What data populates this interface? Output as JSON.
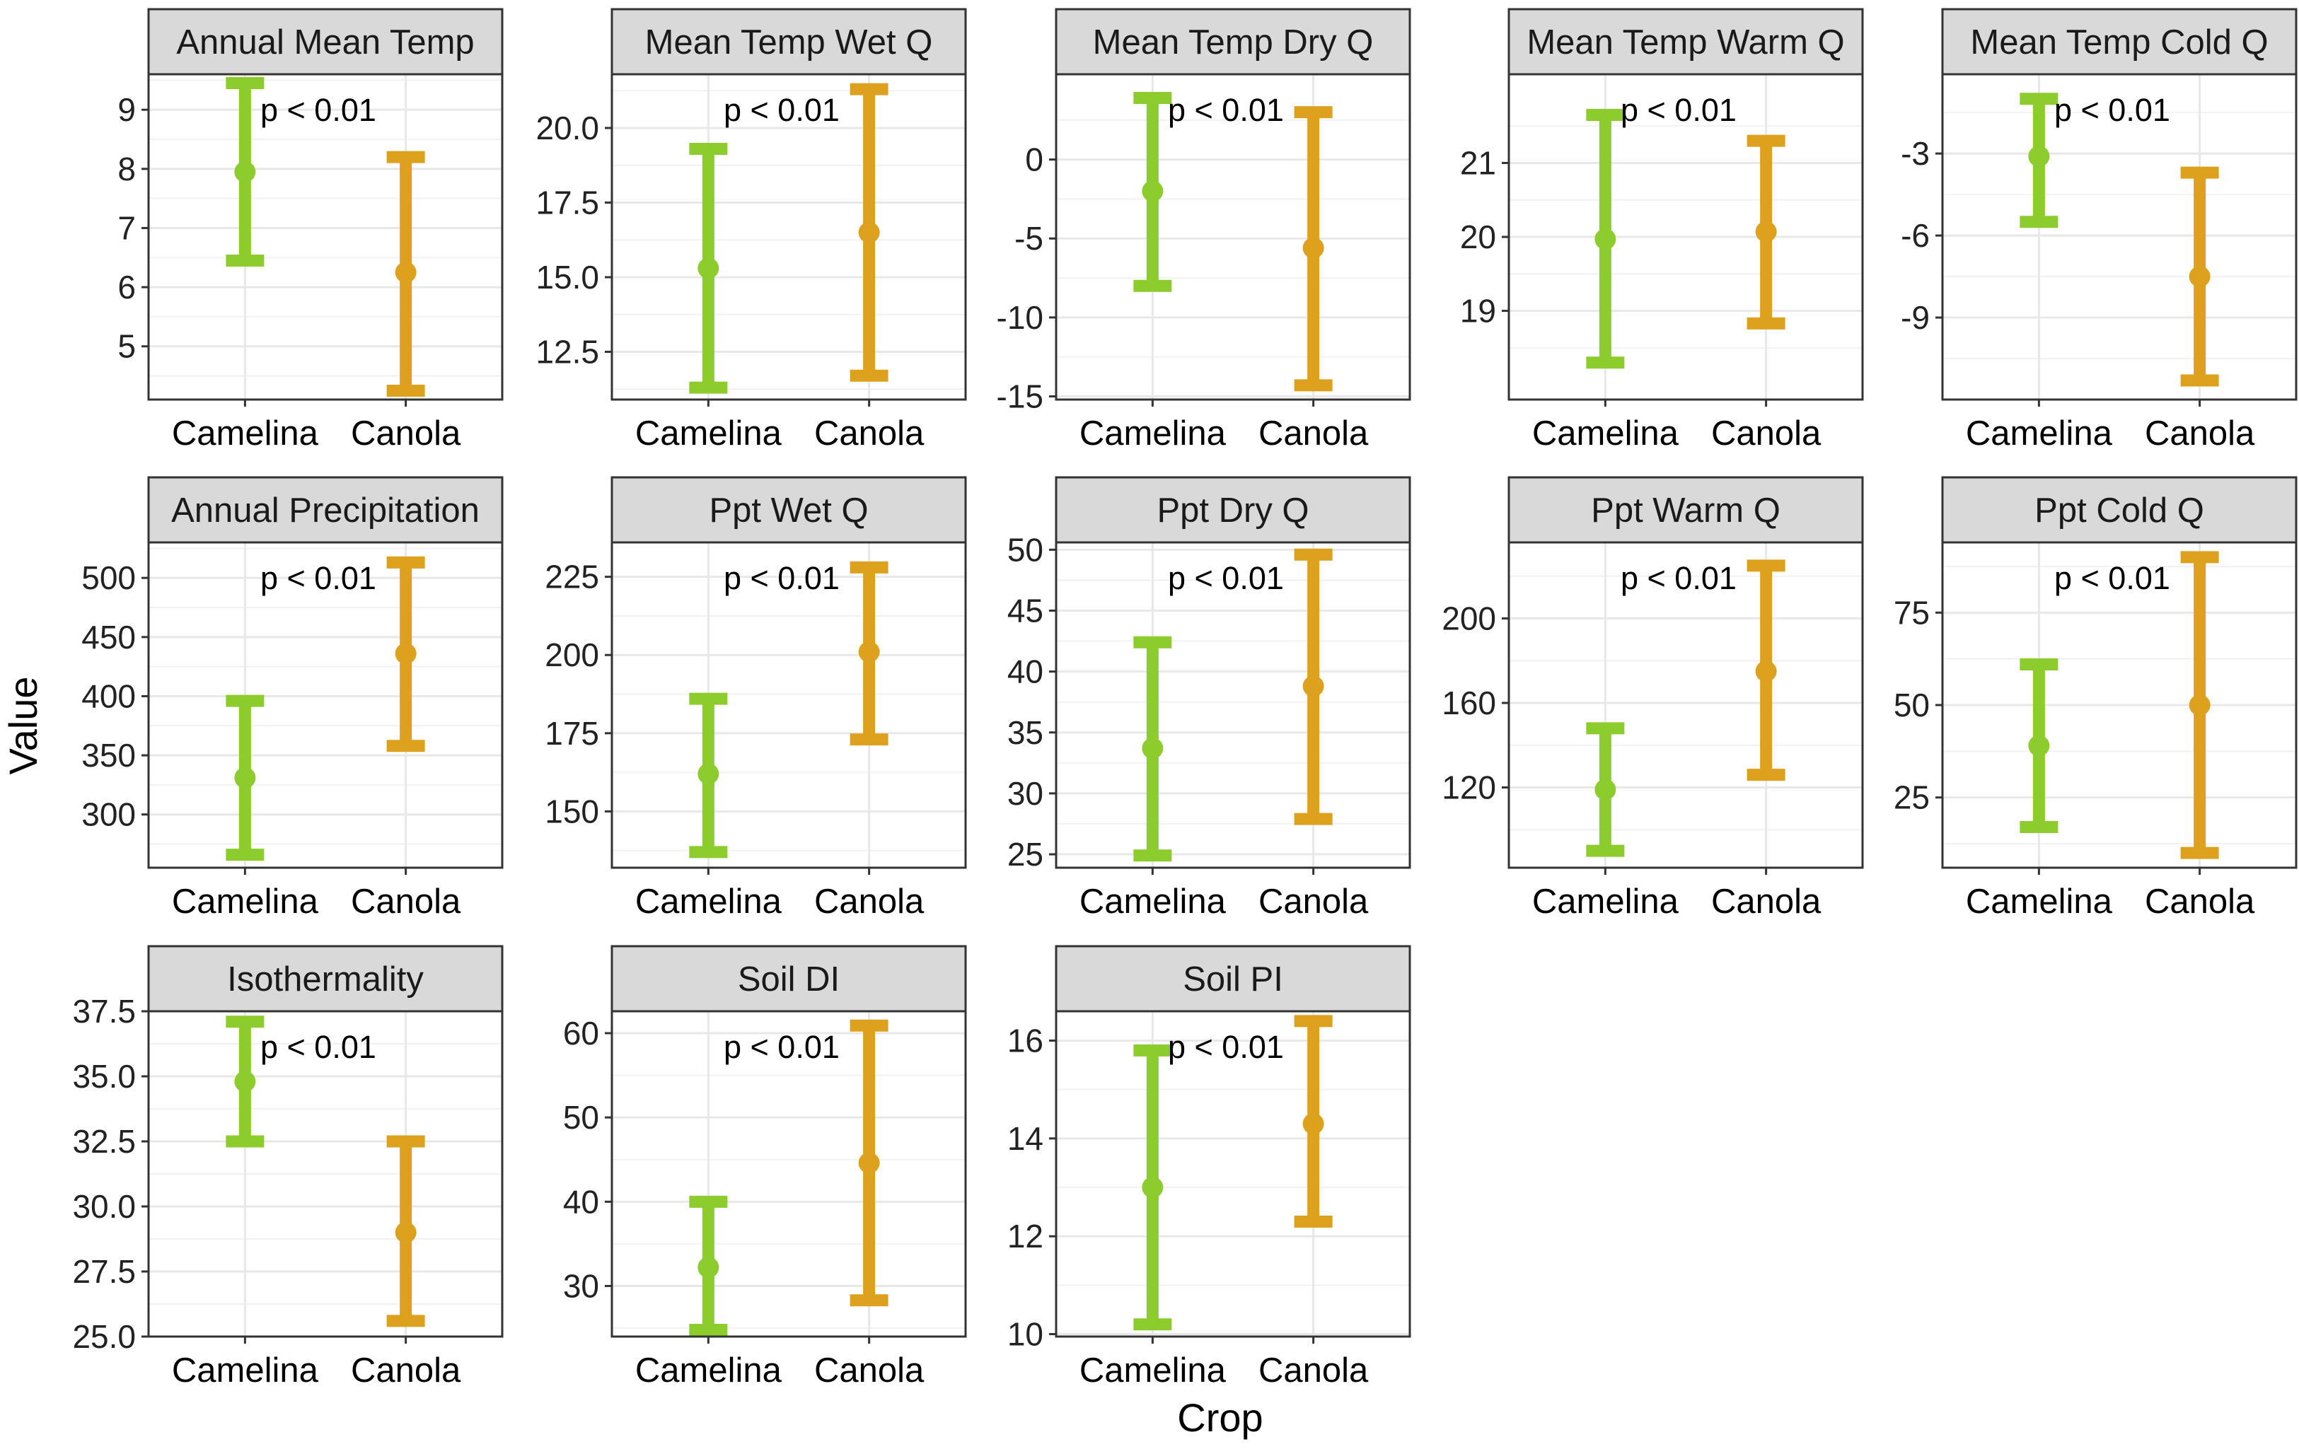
{
  "figure": {
    "xlabel": "Crop",
    "ylabel": "Value",
    "categories": [
      "Camelina",
      "Canola"
    ],
    "colors": {
      "Camelina": "#8ccc2c",
      "Canola": "#dea11e"
    }
  },
  "chart_data": [
    {
      "type": "errorbar",
      "title": "Annual Mean Temp",
      "p_value": "p < 0.01",
      "ylim": [
        4.1,
        9.6
      ],
      "yticks": [
        5,
        6,
        7,
        8,
        9
      ],
      "ytick_labels": [
        "5",
        "6",
        "7",
        "8",
        "9"
      ],
      "series": [
        {
          "name": "Camelina",
          "mean": 7.95,
          "low": 6.45,
          "high": 9.45
        },
        {
          "name": "Canola",
          "mean": 6.25,
          "low": 4.25,
          "high": 8.2
        }
      ]
    },
    {
      "type": "errorbar",
      "title": "Mean Temp Wet Q",
      "p_value": "p < 0.01",
      "ylim": [
        10.9,
        21.8
      ],
      "yticks": [
        12.5,
        15.0,
        17.5,
        20.0
      ],
      "ytick_labels": [
        "12.5",
        "15.0",
        "17.5",
        "20.0"
      ],
      "series": [
        {
          "name": "Camelina",
          "mean": 15.3,
          "low": 11.3,
          "high": 19.3
        },
        {
          "name": "Canola",
          "mean": 16.5,
          "low": 11.7,
          "high": 21.3
        }
      ]
    },
    {
      "type": "errorbar",
      "title": "Mean Temp Dry Q",
      "p_value": "p < 0.01",
      "ylim": [
        -15.2,
        5.4
      ],
      "yticks": [
        -15,
        -10,
        -5,
        0
      ],
      "ytick_labels": [
        "-15",
        "-10",
        "-5",
        "0"
      ],
      "series": [
        {
          "name": "Camelina",
          "mean": -2.0,
          "low": -8.0,
          "high": 3.9
        },
        {
          "name": "Canola",
          "mean": -5.6,
          "low": -14.3,
          "high": 3.0
        }
      ]
    },
    {
      "type": "errorbar",
      "title": "Mean Temp Warm Q",
      "p_value": "p < 0.01",
      "ylim": [
        17.8,
        22.2
      ],
      "yticks": [
        19,
        20,
        21
      ],
      "ytick_labels": [
        "19",
        "20",
        "21"
      ],
      "series": [
        {
          "name": "Camelina",
          "mean": 19.97,
          "low": 18.3,
          "high": 21.65
        },
        {
          "name": "Canola",
          "mean": 20.07,
          "low": 18.83,
          "high": 21.3
        }
      ]
    },
    {
      "type": "errorbar",
      "title": "Mean Temp Cold Q",
      "p_value": "p < 0.01",
      "ylim": [
        -12.0,
        -0.1
      ],
      "yticks": [
        -9,
        -6,
        -3
      ],
      "ytick_labels": [
        "-9",
        "-6",
        "-3"
      ],
      "series": [
        {
          "name": "Camelina",
          "mean": -3.1,
          "low": -5.5,
          "high": -1.0
        },
        {
          "name": "Canola",
          "mean": -7.5,
          "low": -11.3,
          "high": -3.7
        }
      ]
    },
    {
      "type": "errorbar",
      "title": "Annual Precipitation",
      "p_value": "p < 0.01",
      "ylim": [
        255,
        530
      ],
      "yticks": [
        300,
        350,
        400,
        450,
        500
      ],
      "ytick_labels": [
        "300",
        "350",
        "400",
        "450",
        "500"
      ],
      "series": [
        {
          "name": "Camelina",
          "mean": 331,
          "low": 266,
          "high": 396
        },
        {
          "name": "Canola",
          "mean": 436,
          "low": 358,
          "high": 513
        }
      ]
    },
    {
      "type": "errorbar",
      "title": "Ppt Wet Q",
      "p_value": "p < 0.01",
      "ylim": [
        132,
        236
      ],
      "yticks": [
        150,
        175,
        200,
        225
      ],
      "ytick_labels": [
        "150",
        "175",
        "200",
        "225"
      ],
      "series": [
        {
          "name": "Camelina",
          "mean": 162,
          "low": 137,
          "high": 186
        },
        {
          "name": "Canola",
          "mean": 201,
          "low": 173,
          "high": 228
        }
      ]
    },
    {
      "type": "errorbar",
      "title": "Ppt Dry Q",
      "p_value": "p < 0.01",
      "ylim": [
        23.9,
        50.6
      ],
      "yticks": [
        25,
        30,
        35,
        40,
        45,
        50
      ],
      "ytick_labels": [
        "25",
        "30",
        "35",
        "40",
        "45",
        "50"
      ],
      "series": [
        {
          "name": "Camelina",
          "mean": 33.7,
          "low": 24.9,
          "high": 42.4
        },
        {
          "name": "Canola",
          "mean": 38.8,
          "low": 27.9,
          "high": 49.6
        }
      ]
    },
    {
      "type": "errorbar",
      "title": "Ppt Warm Q",
      "p_value": "p < 0.01",
      "ylim": [
        82,
        236
      ],
      "yticks": [
        120,
        160,
        200
      ],
      "ytick_labels": [
        "120",
        "160",
        "200"
      ],
      "series": [
        {
          "name": "Camelina",
          "mean": 119,
          "low": 90,
          "high": 148
        },
        {
          "name": "Canola",
          "mean": 175,
          "low": 126,
          "high": 225
        }
      ]
    },
    {
      "type": "errorbar",
      "title": "Ppt Cold Q",
      "p_value": "p < 0.01",
      "ylim": [
        6,
        94
      ],
      "yticks": [
        25,
        50,
        75
      ],
      "ytick_labels": [
        "25",
        "50",
        "75"
      ],
      "series": [
        {
          "name": "Camelina",
          "mean": 39,
          "low": 17,
          "high": 61
        },
        {
          "name": "Canola",
          "mean": 50,
          "low": 10,
          "high": 90
        }
      ]
    },
    {
      "type": "errorbar",
      "title": "Isothermality",
      "p_value": "p < 0.01",
      "ylim": [
        25.0,
        37.5
      ],
      "yticks": [
        25.0,
        27.5,
        30.0,
        32.5,
        35.0,
        37.5
      ],
      "ytick_labels": [
        "25.0",
        "27.5",
        "30.0",
        "32.5",
        "35.0",
        "37.5"
      ],
      "series": [
        {
          "name": "Camelina",
          "mean": 34.8,
          "low": 32.5,
          "high": 37.1
        },
        {
          "name": "Canola",
          "mean": 29.0,
          "low": 25.6,
          "high": 32.5
        }
      ]
    },
    {
      "type": "errorbar",
      "title": "Soil DI",
      "p_value": "p < 0.01",
      "ylim": [
        24.0,
        62.6
      ],
      "yticks": [
        30,
        40,
        50,
        60
      ],
      "ytick_labels": [
        "30",
        "40",
        "50",
        "60"
      ],
      "series": [
        {
          "name": "Camelina",
          "mean": 32.2,
          "low": 24.8,
          "high": 40.0
        },
        {
          "name": "Canola",
          "mean": 44.6,
          "low": 28.3,
          "high": 60.9
        }
      ]
    },
    {
      "type": "errorbar",
      "title": "Soil PI",
      "p_value": "p < 0.01",
      "ylim": [
        9.95,
        16.6
      ],
      "yticks": [
        10,
        12,
        14,
        16
      ],
      "ytick_labels": [
        "10",
        "12",
        "14",
        "16"
      ],
      "series": [
        {
          "name": "Camelina",
          "mean": 13.0,
          "low": 10.2,
          "high": 15.8
        },
        {
          "name": "Canola",
          "mean": 14.3,
          "low": 12.3,
          "high": 16.4
        }
      ]
    }
  ]
}
